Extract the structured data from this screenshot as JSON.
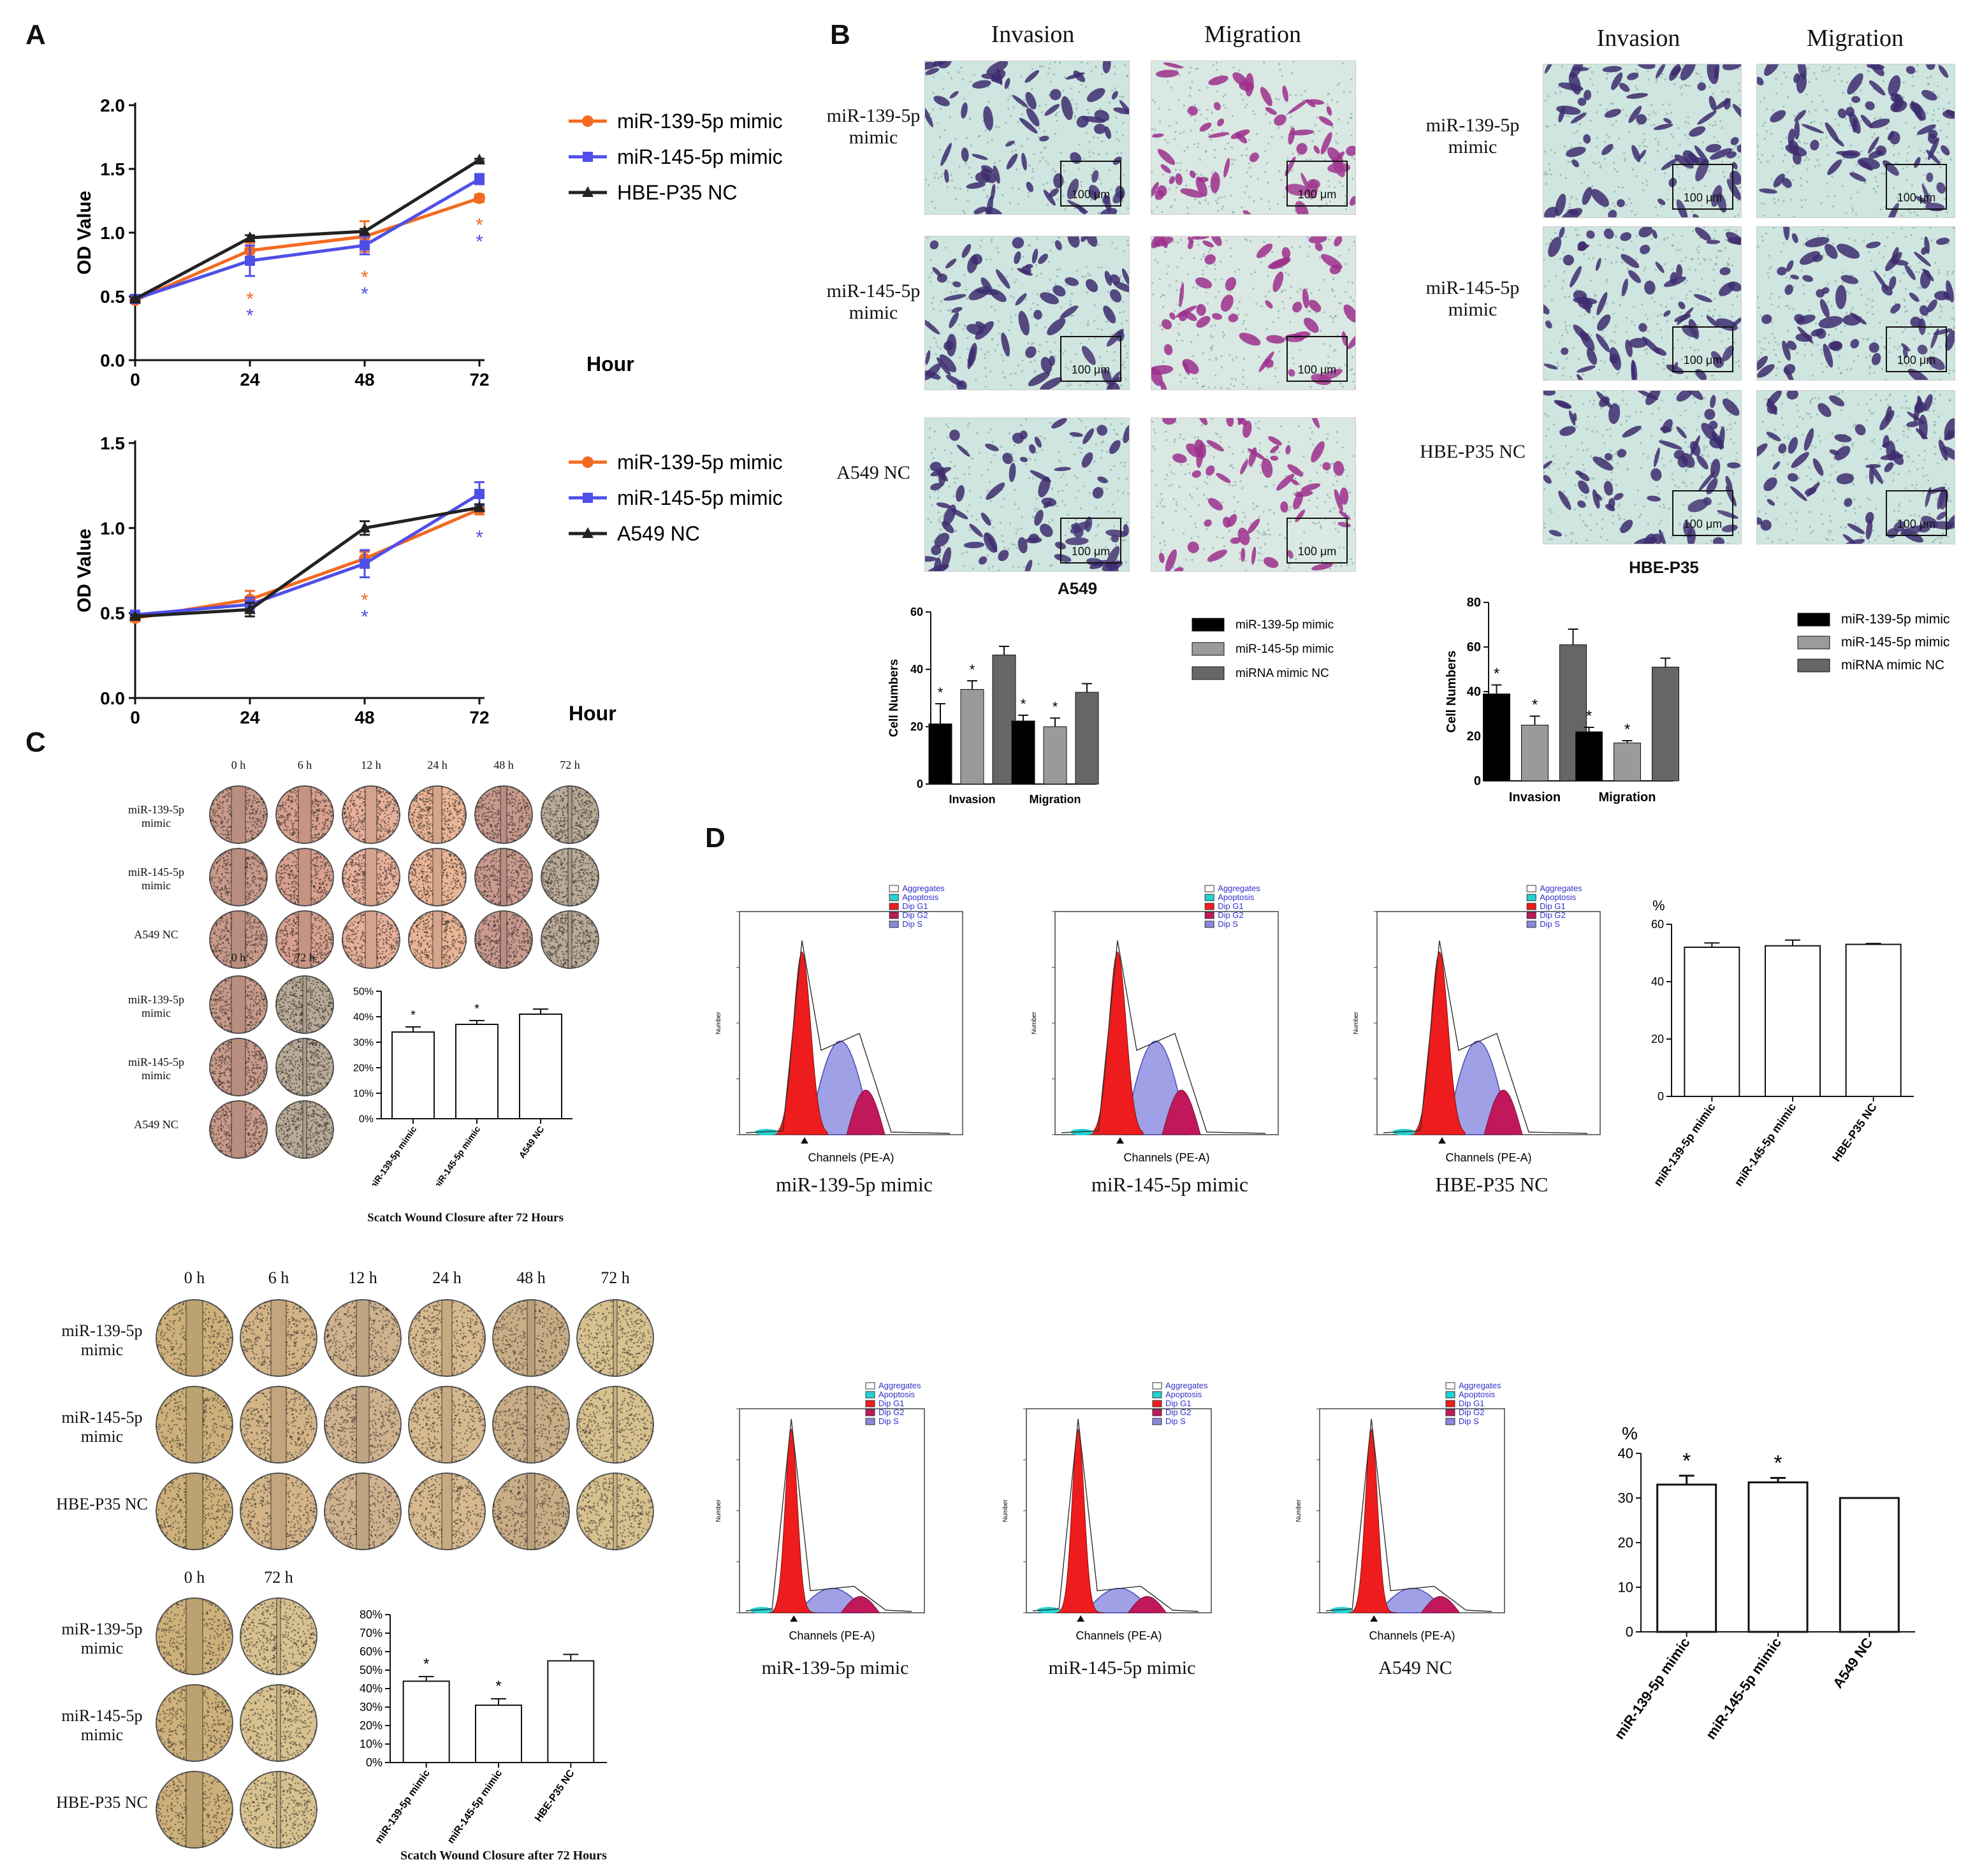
{
  "panels": {
    "A": "A",
    "B": "B",
    "C": "C",
    "D": "D"
  },
  "panelA": {
    "top_chart": {
      "type": "line",
      "ylabel": "OD Value",
      "xlabel": "Hour",
      "x": [
        0,
        24,
        48,
        72
      ],
      "yticks": [
        "0.0",
        "0.5",
        "1.0",
        "1.5",
        "2.0"
      ],
      "xticks": [
        "0",
        "24",
        "48",
        "72"
      ],
      "ylim": [
        0,
        2.0
      ],
      "series": [
        {
          "name": "miR-139-5p mimic",
          "color": "#f26a21",
          "marker": "circle",
          "values": [
            0.47,
            0.86,
            0.97,
            1.27
          ],
          "err": [
            0.02,
            0.06,
            0.12,
            0.03
          ]
        },
        {
          "name": "miR-145-5p mimic",
          "color": "#4f4fe8",
          "marker": "square",
          "values": [
            0.48,
            0.78,
            0.9,
            1.42
          ],
          "err": [
            0.02,
            0.12,
            0.07,
            0.04
          ]
        },
        {
          "name": "HBE-P35 NC",
          "color": "#222222",
          "marker": "triangle",
          "values": [
            0.48,
            0.96,
            1.01,
            1.57
          ],
          "err": [
            0.01,
            0.02,
            0.02,
            0.01
          ]
        }
      ],
      "stars": [
        {
          "x": 24,
          "series": "miR-139-5p mimic",
          "text": "*"
        },
        {
          "x": 24,
          "series": "miR-145-5p mimic",
          "text": "*"
        },
        {
          "x": 48,
          "series": "miR-139-5p mimic",
          "text": "*"
        },
        {
          "x": 48,
          "series": "miR-145-5p mimic",
          "text": "*"
        },
        {
          "x": 72,
          "series": "miR-139-5p mimic",
          "text": "*"
        },
        {
          "x": 72,
          "series": "miR-145-5p mimic",
          "text": "*"
        }
      ]
    },
    "bottom_chart": {
      "type": "line",
      "ylabel": "OD Value",
      "xlabel": "Hour",
      "x": [
        0,
        24,
        48,
        72
      ],
      "yticks": [
        "0.0",
        "0.5",
        "1.0",
        "1.5"
      ],
      "xticks": [
        "0",
        "24",
        "48",
        "72"
      ],
      "ylim": [
        0,
        1.5
      ],
      "series": [
        {
          "name": "miR-139-5p mimic",
          "color": "#f26a21",
          "marker": "circle",
          "values": [
            0.47,
            0.58,
            0.82,
            1.11
          ],
          "err": [
            0.02,
            0.05,
            0.04,
            0.03
          ]
        },
        {
          "name": "miR-145-5p mimic",
          "color": "#4f4fe8",
          "marker": "square",
          "values": [
            0.49,
            0.55,
            0.79,
            1.2
          ],
          "err": [
            0.02,
            0.04,
            0.08,
            0.07
          ]
        },
        {
          "name": "A549 NC",
          "color": "#222222",
          "marker": "triangle",
          "values": [
            0.48,
            0.52,
            1.0,
            1.12
          ],
          "err": [
            0.01,
            0.04,
            0.04,
            0.02
          ]
        }
      ],
      "stars": [
        {
          "x": 48,
          "series": "miR-139-5p mimic",
          "text": "*"
        },
        {
          "x": 48,
          "series": "miR-145-5p mimic",
          "text": "*"
        },
        {
          "x": 72,
          "series": "miR-145-5p mimic",
          "text": "*"
        }
      ]
    }
  },
  "panelB": {
    "left": {
      "col_headers": [
        "Invasion",
        "Migration"
      ],
      "row_labels": [
        "miR-139-5p\nmimic",
        "miR-145-5p\nmimic",
        "A549 NC"
      ],
      "scale": "100 μm",
      "title": "A549"
    },
    "right": {
      "col_headers": [
        "Invasion",
        "Migration"
      ],
      "row_labels": [
        "miR-139-5p\nmimic",
        "miR-145-5p\nmimic",
        "HBE-P35 NC"
      ],
      "scale": "100 μm",
      "title": "HBE-P35"
    },
    "bar_left": {
      "type": "bar",
      "ylabel": "Cell Numbers",
      "categories": [
        "Invasion",
        "Migration"
      ],
      "yticks": [
        "0",
        "20",
        "40",
        "60"
      ],
      "ylim": [
        0,
        60
      ],
      "series": [
        {
          "name": "miR-139-5p mimic",
          "color": "#000000",
          "values": [
            21,
            22
          ],
          "err": [
            7,
            2
          ],
          "stars": [
            "*",
            "*"
          ]
        },
        {
          "name": "miR-145-5p mimic",
          "color": "#9a9a9a",
          "values": [
            33,
            20
          ],
          "err": [
            3,
            3
          ],
          "stars": [
            "*",
            "*"
          ]
        },
        {
          "name": "miRNA mimic NC",
          "color": "#666666",
          "values": [
            45,
            32
          ],
          "err": [
            3,
            3
          ],
          "stars": [
            "",
            ""
          ]
        }
      ]
    },
    "bar_right": {
      "type": "bar",
      "ylabel": "Cell Numbers",
      "categories": [
        "Invasion",
        "Migration"
      ],
      "yticks": [
        "0",
        "20",
        "40",
        "60",
        "80"
      ],
      "ylim": [
        0,
        80
      ],
      "series": [
        {
          "name": "miR-139-5p mimic",
          "color": "#000000",
          "values": [
            39,
            22
          ],
          "err": [
            4,
            2
          ],
          "stars": [
            "*",
            "*"
          ]
        },
        {
          "name": "miR-145-5p mimic",
          "color": "#9a9a9a",
          "values": [
            25,
            17
          ],
          "err": [
            4,
            1
          ],
          "stars": [
            "*",
            "*"
          ]
        },
        {
          "name": "miRNA mimic NC",
          "color": "#666666",
          "values": [
            61,
            51
          ],
          "err": [
            7,
            4
          ],
          "stars": [
            "",
            ""
          ]
        }
      ]
    }
  },
  "panelC": {
    "top": {
      "time_headers": [
        "0 h",
        "6 h",
        "12 h",
        "24 h",
        "48 h",
        "72 h"
      ],
      "row_labels": [
        "miR-139-5p\nmimic",
        "miR-145-5p\nmimic",
        "A549 NC"
      ],
      "small_headers": [
        "0 h",
        "72 h"
      ],
      "small_row_labels": [
        "miR-139-5p\nmimic",
        "miR-145-5p\nmimic",
        "A549 NC"
      ],
      "caption": "Scatch Wound Closure after 72 Hours",
      "bar": {
        "type": "bar",
        "categories": [
          "miR-139-5p mimic",
          "miR-145-5p mimic",
          "A549 NC"
        ],
        "values": [
          34,
          37,
          41
        ],
        "err": [
          2,
          1.5,
          2
        ],
        "stars": [
          "*",
          "*",
          ""
        ],
        "yticks": [
          "0%",
          "10%",
          "20%",
          "30%",
          "40%",
          "50%"
        ],
        "ylim": [
          0,
          50
        ]
      }
    },
    "bottom": {
      "time_headers": [
        "0 h",
        "6 h",
        "12 h",
        "24 h",
        "48 h",
        "72 h"
      ],
      "row_labels": [
        "miR-139-5p\nmimic",
        "miR-145-5p\nmimic",
        "HBE-P35 NC"
      ],
      "small_headers": [
        "0 h",
        "72 h"
      ],
      "small_row_labels": [
        "miR-139-5p\nmimic",
        "miR-145-5p\nmimic",
        "HBE-P35 NC"
      ],
      "caption": "Scatch Wound Closure after 72 Hours",
      "bar": {
        "type": "bar",
        "categories": [
          "miR-139-5p mimic",
          "miR-145-5p mimic",
          "HBE-P35 NC"
        ],
        "values": [
          44,
          31,
          55
        ],
        "err": [
          2.5,
          3.5,
          3.5
        ],
        "stars": [
          "*",
          "*",
          ""
        ],
        "yticks": [
          "0%",
          "10%",
          "20%",
          "30%",
          "40%",
          "50%",
          "60%",
          "70%",
          "80%"
        ],
        "ylim": [
          0,
          80
        ]
      }
    }
  },
  "panelD": {
    "legend": [
      "Aggregates",
      "Apoptosis",
      "Dip G1",
      "Dip G2",
      "Dip S"
    ],
    "legend_colors": [
      "#ffffff",
      "#22d3d3",
      "#ee1c1c",
      "#c0185a",
      "#8888dd"
    ],
    "xlabel": "Channels (PE-A)",
    "ylabel": "Number",
    "top": {
      "names": [
        "miR-139-5p mimic",
        "miR-145-5p mimic",
        "HBE-P35 NC"
      ],
      "bar": {
        "type": "bar",
        "unit": "%",
        "categories": [
          "miR-139-5p mimic",
          "miR-145-5p mimic",
          "HBE-P35 NC"
        ],
        "values": [
          52,
          52.5,
          53
        ],
        "err": [
          1.5,
          2,
          0.3
        ],
        "stars": [
          "",
          "",
          ""
        ],
        "yticks": [
          "0",
          "20",
          "40",
          "60"
        ],
        "ylim": [
          0,
          60
        ]
      }
    },
    "bottom": {
      "names": [
        "miR-139-5p mimic",
        "miR-145-5p mimic",
        "A549 NC"
      ],
      "bar": {
        "type": "bar",
        "unit": "%",
        "categories": [
          "miR-139-5p mimic",
          "miR-145-5p mimic",
          "A549 NC"
        ],
        "values": [
          33,
          33.5,
          30
        ],
        "err": [
          2,
          1,
          0
        ],
        "stars": [
          "*",
          "*",
          ""
        ],
        "yticks": [
          "0",
          "10",
          "20",
          "30",
          "40"
        ],
        "ylim": [
          0,
          40
        ]
      }
    }
  }
}
